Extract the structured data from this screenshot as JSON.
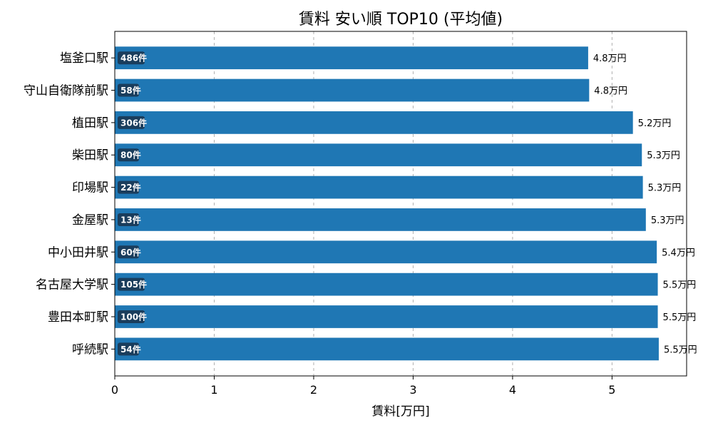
{
  "chart_data": {
    "type": "bar",
    "orientation": "horizontal",
    "title": "賃料 安い順 TOP10 (平均値)",
    "xlabel": "賃料[万円]",
    "ylabel": "",
    "xlim": [
      0,
      5.75
    ],
    "xticks": [
      "0",
      "1",
      "2",
      "3",
      "4",
      "5"
    ],
    "grid": "x-dashed",
    "color": "#1f77b4",
    "count_badge_color": "#1a3d5c",
    "categories": [
      "塩釜口駅",
      "守山自衛隊前駅",
      "植田駅",
      "柴田駅",
      "印場駅",
      "金屋駅",
      "中小田井駅",
      "名古屋大学駅",
      "豊田本町駅",
      "呼続駅"
    ],
    "values": [
      4.76,
      4.77,
      5.21,
      5.3,
      5.31,
      5.34,
      5.45,
      5.46,
      5.46,
      5.47
    ],
    "value_labels": [
      "4.8万円",
      "4.8万円",
      "5.2万円",
      "5.3万円",
      "5.3万円",
      "5.3万円",
      "5.4万円",
      "5.5万円",
      "5.5万円",
      "5.5万円"
    ],
    "counts": [
      "486件",
      "58件",
      "306件",
      "80件",
      "22件",
      "13件",
      "60件",
      "105件",
      "100件",
      "54件"
    ]
  }
}
